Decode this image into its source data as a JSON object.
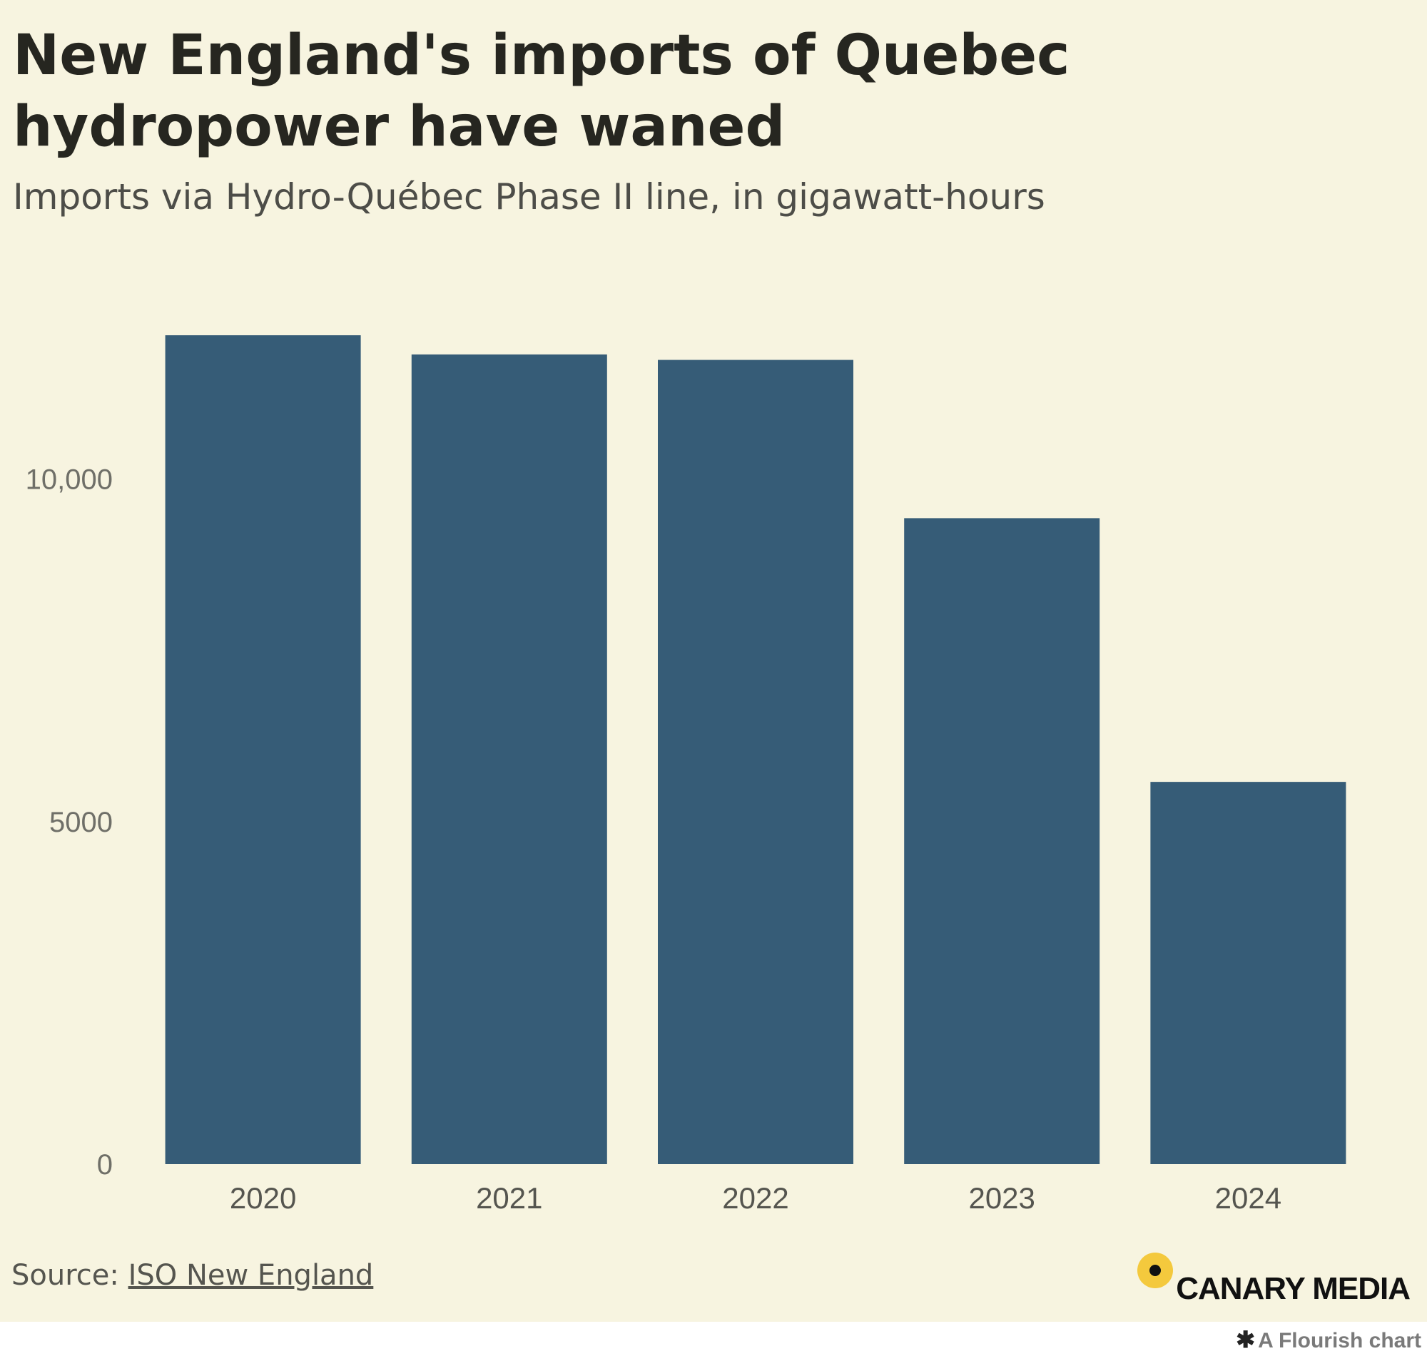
{
  "header": {
    "title": "New England's imports of Quebec hydropower have waned",
    "subtitle": "Imports via Hydro-Québec Phase II line, in gigawatt-hours"
  },
  "footer": {
    "source_prefix": "Source: ",
    "source_link": "ISO New England",
    "brand": "CANARY MEDIA",
    "flourish_label": "A Flourish chart"
  },
  "colors": {
    "background": "#f7f4e0",
    "bar": "#365c77",
    "brand_dot": "#f4c93d"
  },
  "chart_data": {
    "type": "bar",
    "title": "New England's imports of Quebec hydropower have waned",
    "subtitle": "Imports via Hydro-Québec Phase II line, in gigawatt-hours",
    "xlabel": "",
    "ylabel": "",
    "categories": [
      "2020",
      "2021",
      "2022",
      "2023",
      "2024"
    ],
    "values": [
      12100,
      11820,
      11740,
      9430,
      5580
    ],
    "ylim": [
      0,
      12100
    ],
    "yticks": [
      0,
      5000,
      10000
    ],
    "ytick_labels": [
      "0",
      "5000",
      "10,000"
    ],
    "grid": false,
    "legend": "none"
  }
}
